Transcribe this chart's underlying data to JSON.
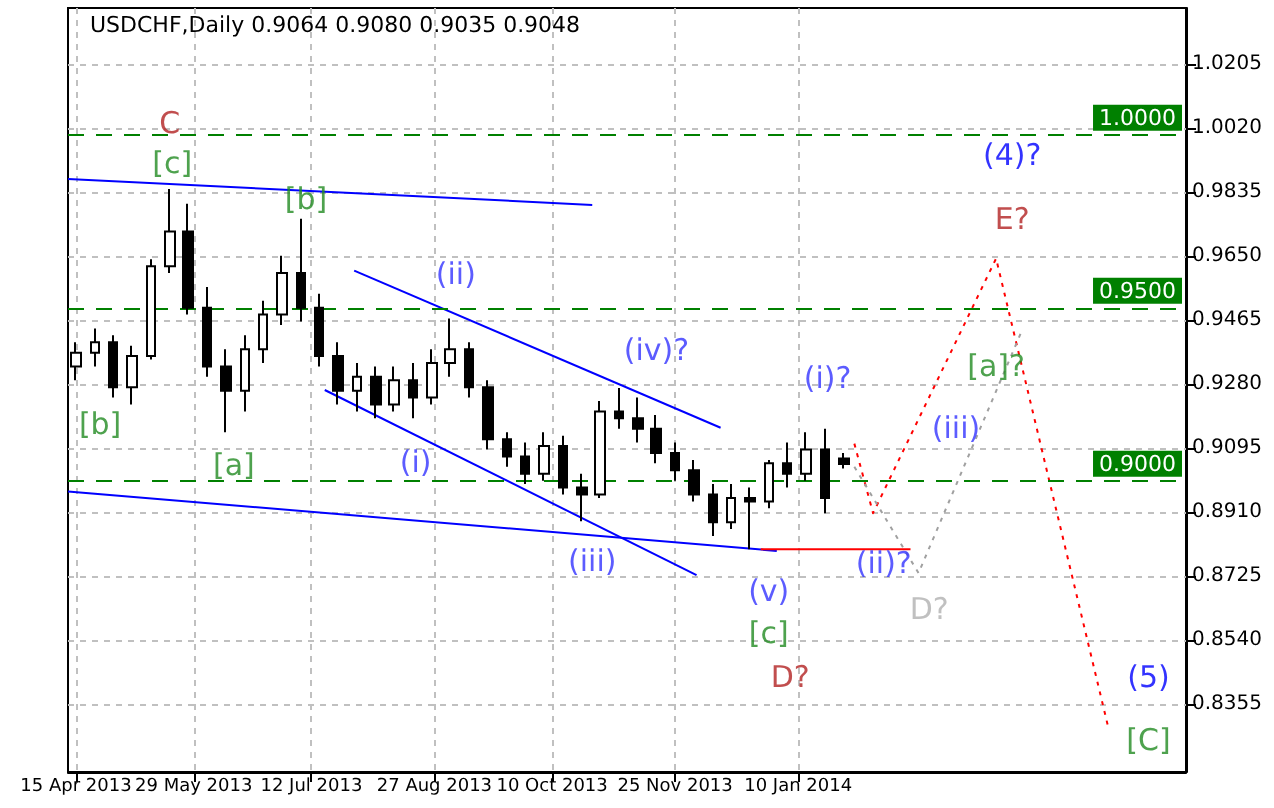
{
  "chart_data": {
    "type": "candlestick",
    "title": "USDCHF,Daily 0.9064 0.9080 0.9035 0.9048",
    "x": [
      "2013-04-15",
      "2013-04-22",
      "2013-04-29",
      "2013-05-06",
      "2013-05-13",
      "2013-05-20",
      "2013-05-27",
      "2013-06-03",
      "2013-06-10",
      "2013-06-17",
      "2013-06-24",
      "2013-07-01",
      "2013-07-08",
      "2013-07-15",
      "2013-07-22",
      "2013-07-29",
      "2013-08-05",
      "2013-08-12",
      "2013-08-19",
      "2013-08-26",
      "2013-09-02",
      "2013-09-09",
      "2013-09-16",
      "2013-09-23",
      "2013-09-30",
      "2013-10-07",
      "2013-10-14",
      "2013-10-21",
      "2013-10-28",
      "2013-11-04",
      "2013-11-11",
      "2013-11-18",
      "2013-11-25",
      "2013-12-02",
      "2013-12-09",
      "2013-12-16",
      "2013-12-23",
      "2013-12-30",
      "2014-01-06",
      "2014-01-13",
      "2014-01-20",
      "2014-01-27"
    ],
    "ohlc": [
      [
        0.933,
        0.94,
        0.929,
        0.937
      ],
      [
        0.937,
        0.944,
        0.933,
        0.94
      ],
      [
        0.94,
        0.942,
        0.924,
        0.927
      ],
      [
        0.927,
        0.939,
        0.922,
        0.936
      ],
      [
        0.936,
        0.964,
        0.935,
        0.962
      ],
      [
        0.962,
        0.9843,
        0.96,
        0.972
      ],
      [
        0.972,
        0.98,
        0.948,
        0.95
      ],
      [
        0.95,
        0.956,
        0.93,
        0.933
      ],
      [
        0.933,
        0.938,
        0.914,
        0.926
      ],
      [
        0.926,
        0.942,
        0.92,
        0.938
      ],
      [
        0.938,
        0.952,
        0.934,
        0.948
      ],
      [
        0.948,
        0.965,
        0.945,
        0.96
      ],
      [
        0.96,
        0.9757,
        0.946,
        0.95
      ],
      [
        0.95,
        0.954,
        0.933,
        0.936
      ],
      [
        0.936,
        0.94,
        0.922,
        0.926
      ],
      [
        0.926,
        0.934,
        0.92,
        0.93
      ],
      [
        0.93,
        0.933,
        0.918,
        0.922
      ],
      [
        0.922,
        0.933,
        0.92,
        0.929
      ],
      [
        0.929,
        0.934,
        0.918,
        0.924
      ],
      [
        0.924,
        0.938,
        0.922,
        0.934
      ],
      [
        0.934,
        0.9469,
        0.93,
        0.938
      ],
      [
        0.938,
        0.94,
        0.924,
        0.927
      ],
      [
        0.927,
        0.929,
        0.909,
        0.912
      ],
      [
        0.912,
        0.914,
        0.904,
        0.907
      ],
      [
        0.907,
        0.911,
        0.899,
        0.902
      ],
      [
        0.902,
        0.914,
        0.9,
        0.91
      ],
      [
        0.91,
        0.913,
        0.896,
        0.898
      ],
      [
        0.898,
        0.902,
        0.8883,
        0.896
      ],
      [
        0.896,
        0.923,
        0.895,
        0.92
      ],
      [
        0.92,
        0.9268,
        0.915,
        0.918
      ],
      [
        0.918,
        0.924,
        0.911,
        0.915
      ],
      [
        0.915,
        0.919,
        0.905,
        0.908
      ],
      [
        0.908,
        0.911,
        0.9,
        0.903
      ],
      [
        0.903,
        0.906,
        0.894,
        0.896
      ],
      [
        0.896,
        0.899,
        0.884,
        0.888
      ],
      [
        0.888,
        0.899,
        0.886,
        0.895
      ],
      [
        0.895,
        0.898,
        0.8802,
        0.894
      ],
      [
        0.894,
        0.906,
        0.892,
        0.905
      ],
      [
        0.905,
        0.911,
        0.898,
        0.902
      ],
      [
        0.902,
        0.914,
        0.9,
        0.909
      ],
      [
        0.909,
        0.915,
        0.8906,
        0.895
      ],
      [
        0.9064,
        0.908,
        0.9035,
        0.9048
      ]
    ],
    "color": "#000000",
    "series": [
      {
        "type": "line",
        "x": [
          "2013-04-12",
          "2013-10-25"
        ],
        "values": [
          0.9872,
          0.9797
        ],
        "color": "#0000ff",
        "line_style": "solid"
      },
      {
        "type": "line",
        "x": [
          "2013-04-12",
          "2014-01-02"
        ],
        "values": [
          0.8969,
          0.8797
        ],
        "color": "#0000ff",
        "line_style": "solid"
      },
      {
        "type": "line",
        "x": [
          "2013-07-28",
          "2013-12-12"
        ],
        "values": [
          0.9607,
          0.9153
        ],
        "color": "#0000ff",
        "line_style": "solid"
      },
      {
        "type": "line",
        "x": [
          "2013-07-17",
          "2013-12-03"
        ],
        "values": [
          0.9262,
          0.8727
        ],
        "color": "#0000ff",
        "line_style": "solid"
      },
      {
        "type": "line",
        "x": [
          "2013-12-27",
          "2014-02-21"
        ],
        "values": [
          0.8802,
          0.8802
        ],
        "color": "#ff0000",
        "line_style": "solid"
      },
      {
        "type": "line",
        "x": [
          "2014-01-31",
          "2014-02-07",
          "2014-03-25",
          "2014-05-06"
        ],
        "values": [
          0.9107,
          0.8906,
          0.9642,
          0.8285
        ],
        "color": "#ff0000",
        "line_style": "dotted"
      },
      {
        "type": "line",
        "x": [
          "2014-01-31",
          "2014-02-24",
          "2014-04-04"
        ],
        "values": [
          0.904,
          0.8733,
          0.944
        ],
        "color": "#a0a0a0",
        "line_style": "dotted"
      }
    ],
    "ref_lines": [
      {
        "axis": "y",
        "value": 1.0,
        "label": "1.0000",
        "color": "#008000",
        "line_style": "dashed"
      },
      {
        "axis": "y",
        "value": 0.95,
        "label": "0.9500",
        "color": "#008000",
        "line_style": "dashed"
      },
      {
        "axis": "y",
        "value": 0.9,
        "label": "0.9000",
        "color": "#008000",
        "line_style": "dashed"
      }
    ],
    "annotations": [
      "C",
      "[c]",
      "[b]",
      "[b]",
      "[a]",
      "(i)",
      "(ii)",
      "(iii)",
      "(iv)?",
      "(v)",
      "[c]",
      "D?",
      "(i)?",
      "(ii)?",
      "D?",
      "(iii)",
      "[a]?",
      "(4)?",
      "E?",
      "(5)",
      "[C]"
    ],
    "xlim": [
      "2013-04-12",
      "2014-06-04"
    ],
    "xticks": [
      {
        "value": "2013-04-15",
        "label": "15 Apr 2013"
      },
      {
        "value": "2013-05-29",
        "label": "29 May 2013"
      },
      {
        "value": "2013-07-12",
        "label": "12 Jul 2013"
      },
      {
        "value": "2013-08-27",
        "label": "27 Aug 2013"
      },
      {
        "value": "2013-10-10",
        "label": "10 Oct 2013"
      },
      {
        "value": "2013-11-25",
        "label": "25 Nov 2013"
      },
      {
        "value": "2014-01-10",
        "label": "10 Jan 2014"
      }
    ],
    "ylim": [
      0.8158,
      1.0366
    ],
    "yticks": [
      {
        "value": 0.8355,
        "label": "0.8355"
      },
      {
        "value": 0.854,
        "label": "0.8540"
      },
      {
        "value": 0.8725,
        "label": "0.8725"
      },
      {
        "value": 0.891,
        "label": "0.8910"
      },
      {
        "value": 0.9095,
        "label": "0.9095"
      },
      {
        "value": 0.928,
        "label": "0.9280"
      },
      {
        "value": 0.9465,
        "label": "0.9465"
      },
      {
        "value": 0.965,
        "label": "0.9650"
      },
      {
        "value": 0.9835,
        "label": "0.9835"
      },
      {
        "value": 1.002,
        "label": "1.0020"
      },
      {
        "value": 1.0205,
        "label": "1.0205"
      }
    ],
    "grid": true
  }
}
